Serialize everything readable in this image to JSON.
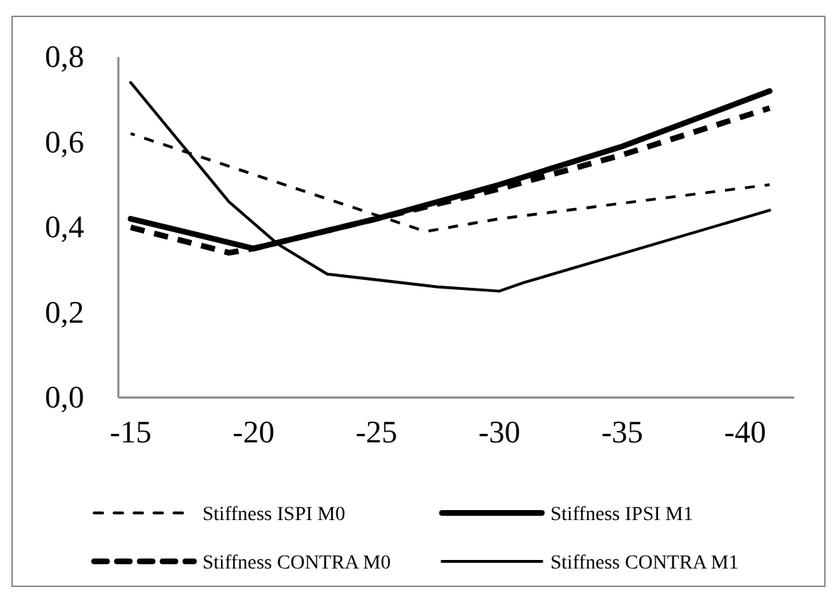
{
  "chart_data": {
    "type": "line",
    "xlim": [
      -14.5,
      -42
    ],
    "xticks": [
      -15,
      -20,
      -25,
      -30,
      -35,
      -40
    ],
    "ylim": [
      0,
      0.8
    ],
    "yticks": [
      {
        "value": 0,
        "label": "0,0"
      },
      {
        "value": 0.2,
        "label": "0,2"
      },
      {
        "value": 0.4,
        "label": "0,4"
      },
      {
        "value": 0.6,
        "label": "0,6"
      },
      {
        "value": 0.8,
        "label": "0,8"
      }
    ],
    "grid": false,
    "legend": "bottom",
    "marker": "none",
    "series": [
      {
        "name": "Stiffness ISPI M0",
        "color": "#000000",
        "line_style": "dashed",
        "x": [
          -15,
          -27,
          -30,
          -41
        ],
        "values": [
          0.62,
          0.39,
          0.42,
          0.5
        ]
      },
      {
        "name": "Stiffness IPSI M1",
        "color": "#000000",
        "line_style": "solid",
        "x": [
          -15,
          -20,
          -25,
          -30,
          -35,
          -41
        ],
        "values": [
          0.42,
          0.35,
          0.42,
          0.5,
          0.59,
          0.72
        ]
      },
      {
        "name": "Stiffness CONTRA M0",
        "color": "#000000",
        "line_style": "dashed",
        "x": [
          -15,
          -19,
          -20,
          -25,
          -30,
          -35,
          -41
        ],
        "values": [
          0.4,
          0.34,
          0.35,
          0.42,
          0.49,
          0.57,
          0.68
        ]
      },
      {
        "name": "Stiffness CONTRA M1",
        "color": "#000000",
        "line_style": "solid",
        "x": [
          -15,
          -19,
          -21,
          -23,
          -27.5,
          -30,
          -31,
          -41
        ],
        "values": [
          0.74,
          0.46,
          0.36,
          0.29,
          0.26,
          0.25,
          0.27,
          0.44
        ]
      }
    ]
  }
}
